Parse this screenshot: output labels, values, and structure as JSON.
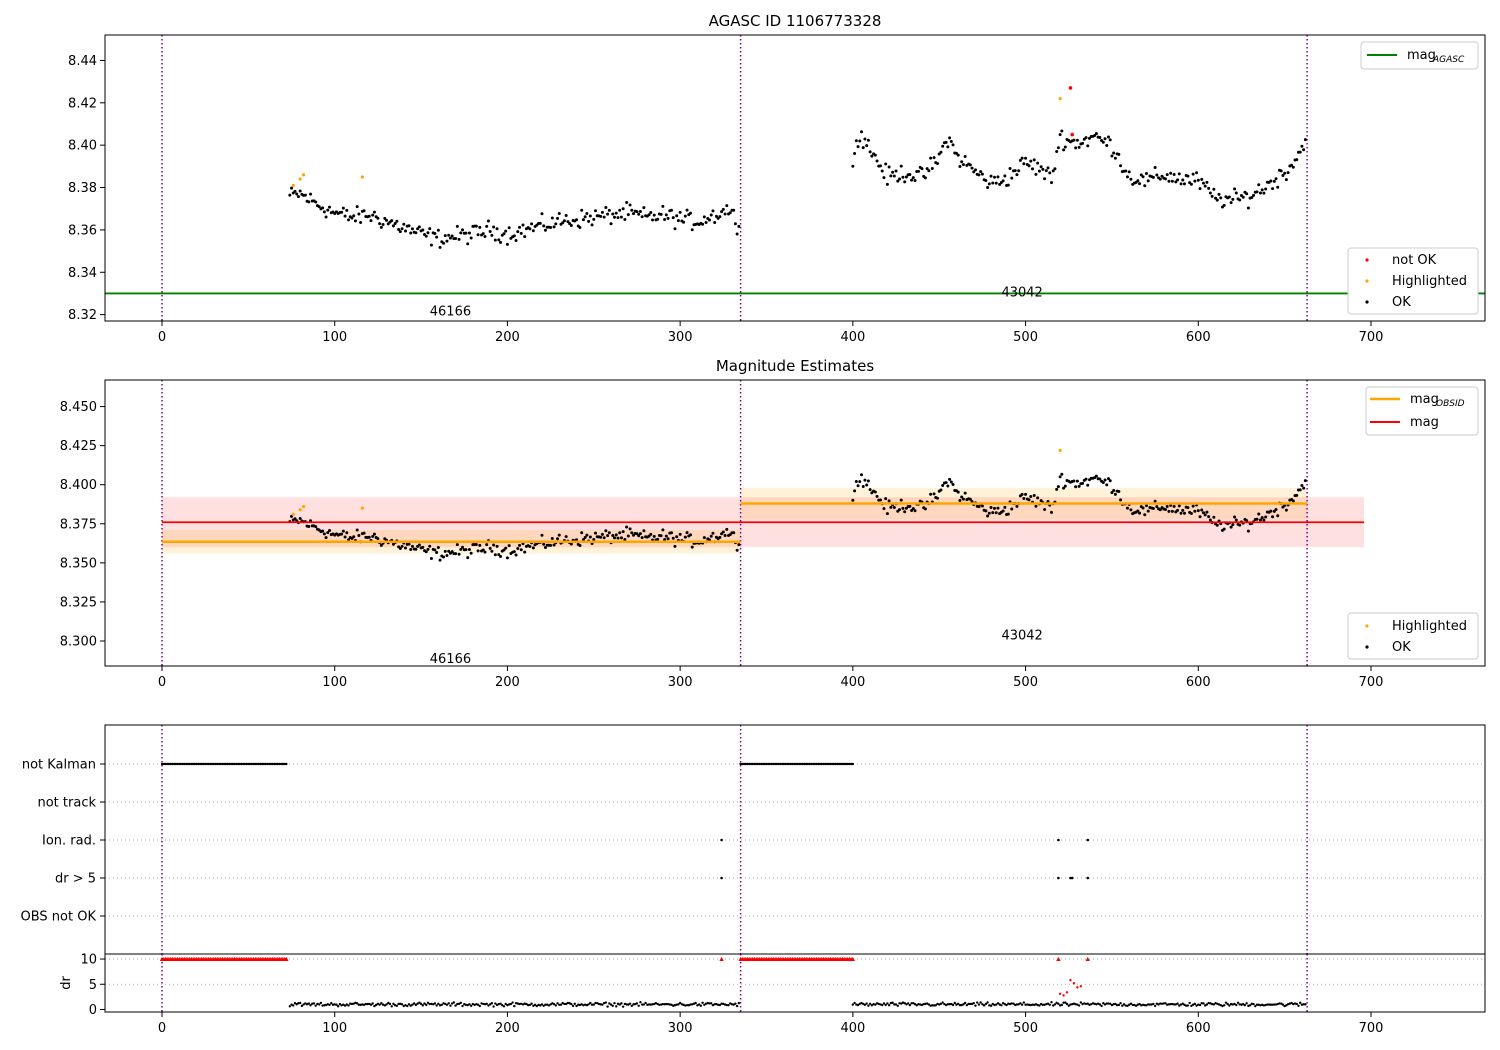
{
  "chart_data": [
    {
      "type": "scatter",
      "title": "AGASC ID 1106773328",
      "xlim": [
        -33,
        766
      ],
      "ylim": [
        8.317,
        8.452
      ],
      "xticks": [
        0,
        100,
        200,
        300,
        400,
        500,
        600,
        700
      ],
      "yticks": [
        8.32,
        8.34,
        8.36,
        8.38,
        8.4,
        8.42,
        8.44
      ],
      "obsid_boundaries": [
        0,
        335,
        663
      ],
      "obsid_labels": [
        {
          "text": "46166",
          "x": 167,
          "y": 8.322
        },
        {
          "text": "43042",
          "x": 498,
          "y": 8.331
        }
      ],
      "mag_agasc": 8.33,
      "legend_lines": [
        {
          "name": "mag",
          "sub": "AGASC",
          "color": "#008000"
        }
      ],
      "legend_points": [
        {
          "name": "not OK",
          "color": "#ff0000"
        },
        {
          "name": "Highlighted",
          "color": "#ffa500"
        },
        {
          "name": "OK",
          "color": "#000000"
        }
      ],
      "series": [
        {
          "name": "OK",
          "color": "#000000",
          "segments": [
            {
              "x": [
                74,
                80,
                90,
                100,
                110,
                120,
                130,
                140,
                150,
                160,
                170,
                180,
                190,
                200,
                210,
                220,
                230,
                240,
                250,
                260,
                270,
                280,
                290,
                300,
                310,
                320,
                328,
                334
              ],
              "y": [
                8.376,
                8.377,
                8.372,
                8.368,
                8.366,
                8.367,
                8.364,
                8.361,
                8.358,
                8.356,
                8.357,
                8.358,
                8.36,
                8.358,
                8.36,
                8.362,
                8.364,
                8.365,
                8.366,
                8.367,
                8.368,
                8.366,
                8.367,
                8.365,
                8.364,
                8.367,
                8.37,
                8.362
              ]
            },
            {
              "x": [
                400,
                405,
                410,
                420,
                430,
                440,
                450,
                455,
                460,
                470,
                480,
                490,
                500,
                510,
                515,
                520,
                525,
                530,
                540,
                550,
                560,
                570,
                580,
                590,
                600,
                610,
                620,
                630,
                640,
                650,
                655,
                662
              ],
              "y": [
                8.396,
                8.405,
                8.398,
                8.385,
                8.387,
                8.385,
                8.394,
                8.404,
                8.395,
                8.388,
                8.382,
                8.385,
                8.392,
                8.388,
                8.384,
                8.404,
                8.402,
                8.401,
                8.404,
                8.4,
                8.385,
                8.383,
                8.386,
                8.384,
                8.383,
                8.375,
                8.374,
                8.376,
                8.381,
                8.387,
                8.392,
                8.401
              ]
            }
          ]
        },
        {
          "name": "Highlighted",
          "color": "#ffa500",
          "x": [
            76,
            80,
            82,
            116,
            520
          ],
          "y": [
            8.381,
            8.384,
            8.386,
            8.385,
            8.422
          ]
        },
        {
          "name": "not OK",
          "color": "#ff0000",
          "x": [
            526,
            527
          ],
          "y": [
            8.427,
            8.405
          ]
        }
      ]
    },
    {
      "type": "scatter",
      "title": "Magnitude Estimates",
      "xlim": [
        -33,
        766
      ],
      "ylim": [
        8.284,
        8.467
      ],
      "xticks": [
        0,
        100,
        200,
        300,
        400,
        500,
        600,
        700
      ],
      "yticks": [
        8.3,
        8.325,
        8.35,
        8.375,
        8.4,
        8.425,
        8.45
      ],
      "obsid_boundaries": [
        0,
        335,
        663
      ],
      "obsid_labels": [
        {
          "text": "46166",
          "x": 167,
          "y": 8.289
        },
        {
          "text": "43042",
          "x": 498,
          "y": 8.304
        }
      ],
      "mag": {
        "value": 8.376,
        "band": [
          8.36,
          8.392
        ],
        "x": [
          0,
          696
        ],
        "color": "#ff0000"
      },
      "mag_obsid": [
        {
          "x": [
            0,
            335
          ],
          "value": 8.3635,
          "band": [
            8.356,
            8.371
          ]
        },
        {
          "x": [
            335,
            663
          ],
          "value": 8.388,
          "band": [
            8.378,
            8.398
          ]
        }
      ],
      "legend_lines": [
        {
          "name": "mag",
          "sub": "OBSID",
          "color": "#ffa500"
        },
        {
          "name": "mag",
          "sub": "",
          "color": "#ff0000"
        }
      ],
      "legend_points": [
        {
          "name": "Highlighted",
          "color": "#ffa500"
        },
        {
          "name": "OK",
          "color": "#000000"
        }
      ],
      "series": [
        {
          "name": "OK",
          "color": "#000000",
          "same_as": "panel1"
        },
        {
          "name": "Highlighted",
          "color": "#ffa500",
          "x": [
            76,
            80,
            82,
            116,
            520
          ],
          "y": [
            8.381,
            8.384,
            8.386,
            8.385,
            8.422
          ]
        }
      ]
    },
    {
      "type": "scatter",
      "title": "",
      "xlim": [
        -33,
        766
      ],
      "categories": [
        "not Kalman",
        "not track",
        "Ion. rad.",
        "dr > 5",
        "OBS not OK"
      ],
      "obsid_boundaries": [
        0,
        335,
        663
      ],
      "flags": [
        {
          "category": "not Kalman",
          "ranges": [
            [
              0,
              72
            ],
            [
              335,
              400
            ]
          ]
        },
        {
          "category": "not track",
          "ranges": []
        },
        {
          "category": "Ion. rad.",
          "points": [
            324,
            519,
            536
          ]
        },
        {
          "category": "dr > 5",
          "points": [
            324,
            519,
            526,
            527,
            536
          ]
        },
        {
          "category": "OBS not OK",
          "points": []
        }
      ]
    },
    {
      "type": "scatter",
      "title": "",
      "ylabel": "dr",
      "xlim": [
        -33,
        766
      ],
      "ylim": [
        -0.5,
        11
      ],
      "xticks": [
        0,
        100,
        200,
        300,
        400,
        500,
        600,
        700
      ],
      "yticks": [
        0,
        5,
        10
      ],
      "obsid_boundaries": [
        0,
        335,
        663
      ],
      "clipped_marker_value": 10,
      "clipped_ranges": [
        [
          0,
          72
        ],
        [
          335,
          400
        ]
      ],
      "clipped_points": [
        324,
        519,
        536
      ],
      "dr_ok_segments": [
        [
          74,
          334
        ],
        [
          400,
          662
        ]
      ],
      "dr_ok_level": 1.0,
      "dr_highlight": {
        "x": [
          520,
          522,
          524,
          526,
          528,
          530,
          532
        ],
        "y": [
          3.1,
          2.8,
          3.4,
          5.8,
          5.2,
          4.4,
          4.6
        ]
      }
    }
  ]
}
